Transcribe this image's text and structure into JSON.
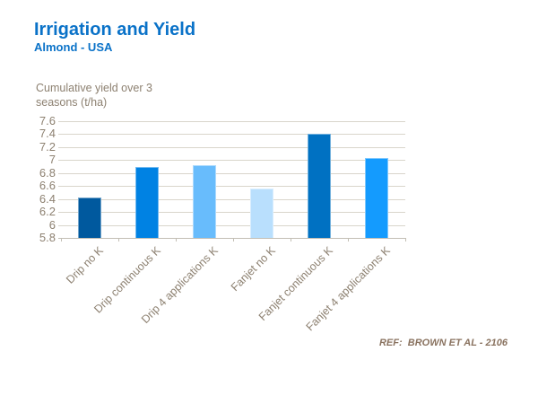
{
  "header": {
    "title": "Irrigation and Yield",
    "subtitle": "Almond - USA"
  },
  "footer": {
    "reference": "REF:  BROWN ET AL - 2106"
  },
  "colors": {
    "title_blue": "#0a72c8",
    "axis_text": "#8d8171",
    "gridline": "#d9d5cb",
    "baseline": "#c2beb4",
    "reference_text": "#8a7360"
  },
  "chart_data": {
    "type": "bar",
    "title": "Irrigation and Yield",
    "subtitle": "Almond - USA",
    "ylabel": "Cumulative yield over 3 seasons (t/ha)",
    "xlabel": "",
    "categories": [
      "Drip no K",
      "Drip continuous K",
      "Drip 4 applications K",
      "Fanjet no K",
      "Fanjet continuous K",
      "Fanjet 4 applications K"
    ],
    "values": [
      6.42,
      6.9,
      6.92,
      6.56,
      7.4,
      7.03
    ],
    "bar_colors": [
      "#00599e",
      "#0082e3",
      "#68bcfc",
      "#b9dffd",
      "#0071c2",
      "#149bfe"
    ],
    "ylim": [
      5.8,
      7.6
    ],
    "ytick_labels": [
      "5.8",
      "6",
      "6.2",
      "6.4",
      "6.6",
      "6.8",
      "7",
      "7.2",
      "7.4",
      "7.6"
    ],
    "grid": true,
    "legend_position": "none",
    "category_label_rotation_deg": -45
  }
}
